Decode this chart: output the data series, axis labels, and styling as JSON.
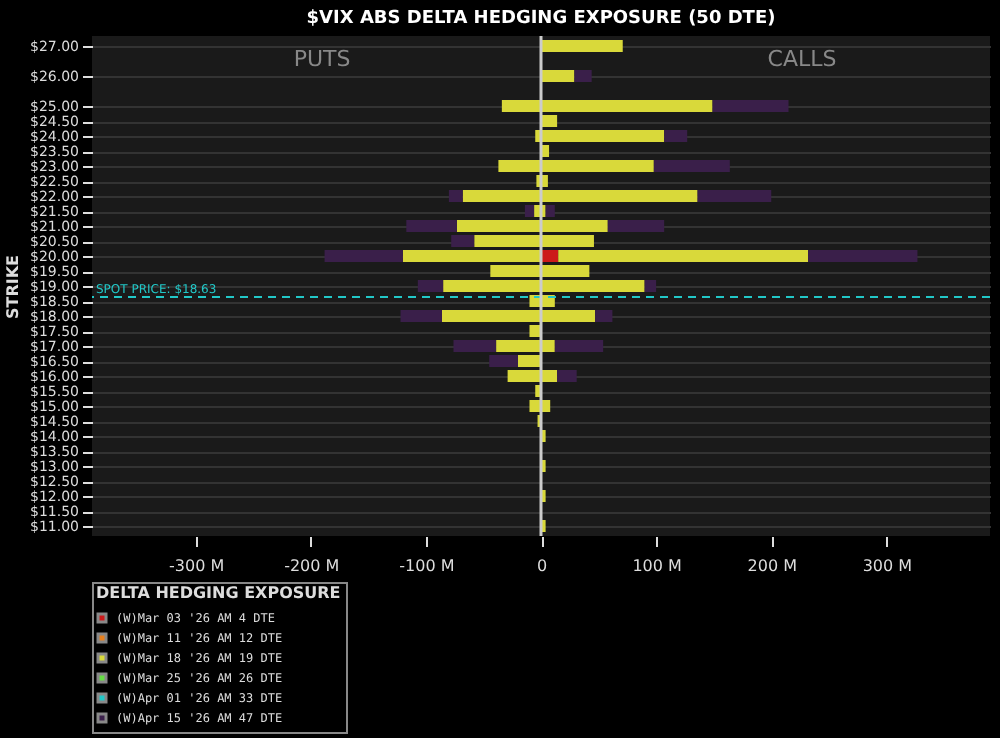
{
  "chart_data": {
    "type": "bar",
    "orientation": "horizontal",
    "stacked": true,
    "title": "$VIX ABS DELTA HEDGING EXPOSURE (50 DTE)",
    "ylabel": "STRIKE",
    "legend_title": "DELTA HEDGING EXPOSURE",
    "legend": "bottom",
    "grid": "y",
    "annotations": [
      "PUTS",
      "CALLS"
    ],
    "x": [
      27,
      26.5,
      26,
      25.5,
      25,
      24.5,
      24,
      23.5,
      23,
      22.5,
      22,
      21.5,
      21,
      20.5,
      20,
      19.5,
      19,
      18.5,
      18,
      17.5,
      17,
      16.5,
      16,
      15.5,
      15,
      14.5,
      14,
      13.5,
      13,
      12.5,
      12,
      11.5,
      11
    ],
    "series": [
      {
        "name": "(W)Mar 03 '26 AM 4 DTE",
        "color": "#cc1a1a",
        "values": [
          null,
          null,
          null,
          null,
          null,
          null,
          null,
          null,
          null,
          null,
          null,
          null,
          null,
          null,
          15,
          null,
          null,
          null,
          null,
          null,
          null,
          null,
          null,
          null,
          null,
          null,
          null,
          null,
          null,
          null,
          null,
          null,
          null
        ]
      },
      {
        "name": "(W)Mar 11 '26 AM 12 DTE",
        "color": "#e8801e",
        "values": [
          null,
          null,
          null,
          null,
          null,
          null,
          null,
          null,
          null,
          null,
          null,
          null,
          null,
          null,
          null,
          null,
          null,
          null,
          null,
          null,
          null,
          null,
          null,
          null,
          null,
          null,
          null,
          null,
          null,
          null,
          null,
          null,
          null
        ]
      },
      {
        "name": "(W)Mar 18 '26 AM 19 DTE",
        "color": "#d9d93a",
        "values": [
          71,
          null,
          29,
          null,
          149,
          14,
          107,
          7,
          98,
          6,
          136,
          4,
          58,
          46,
          217,
          42,
          90,
          12,
          47,
          null,
          12,
          null,
          14,
          null,
          8,
          null,
          4,
          null,
          4,
          null,
          4,
          null,
          4
        ]
      },
      {
        "name": "(W)Mar 25 '26 AM 26 DTE",
        "color": "#66dd44",
        "values": [
          null,
          null,
          null,
          null,
          null,
          null,
          null,
          null,
          null,
          null,
          null,
          null,
          null,
          null,
          null,
          null,
          null,
          null,
          null,
          null,
          null,
          null,
          null,
          null,
          null,
          null,
          null,
          null,
          null,
          null,
          null,
          null,
          null
        ]
      },
      {
        "name": "(W)Apr 01 '26 AM 33 DTE",
        "color": "#22c8c8",
        "values": [
          null,
          null,
          null,
          null,
          null,
          null,
          null,
          null,
          null,
          null,
          null,
          null,
          null,
          null,
          null,
          null,
          null,
          null,
          null,
          null,
          null,
          null,
          null,
          null,
          null,
          null,
          null,
          null,
          null,
          null,
          null,
          null,
          null
        ]
      },
      {
        "name": "(W)Apr 15 '26 AM 47 DTE",
        "color": "#3a1f4a",
        "values": [
          null,
          null,
          15,
          null,
          66,
          null,
          20,
          null,
          66,
          null,
          64,
          8,
          49,
          null,
          95,
          null,
          10,
          null,
          15,
          null,
          42,
          null,
          17,
          null,
          null,
          null,
          null,
          null,
          null,
          null,
          null,
          null,
          null
        ]
      },
      {
        "color": "#d9d93a",
        "values": [
          null,
          null,
          null,
          null,
          -34,
          null,
          -5,
          null,
          -37,
          -4,
          -68,
          -6,
          -73,
          -58,
          -120,
          -44,
          -85,
          -10,
          -86,
          -10,
          -39,
          -20,
          -29,
          -5,
          -10,
          -3,
          null,
          null,
          null,
          null,
          null,
          null,
          null
        ]
      },
      {
        "color": "#3a1f4a",
        "values": [
          null,
          null,
          null,
          null,
          null,
          null,
          null,
          null,
          null,
          null,
          -12,
          -8,
          -44,
          -20,
          -68,
          null,
          -22,
          null,
          -36,
          null,
          -37,
          -25,
          null,
          null,
          null,
          null,
          null,
          null,
          null,
          null,
          null,
          null,
          null
        ]
      }
    ],
    "xlim": [
      -390,
      390
    ],
    "xticks": [
      {
        "value": -300,
        "label": "-300 M"
      },
      {
        "value": -200,
        "label": "-200 M"
      },
      {
        "value": -100,
        "label": "-100 M"
      },
      0,
      {
        "value": 100,
        "label": "100 M"
      },
      {
        "value": 200,
        "label": "200 M"
      },
      {
        "value": 300,
        "label": "300 M"
      }
    ],
    "ylim": [
      11,
      27
    ],
    "yticks": [
      {
        "value": 27,
        "label": "$27.00"
      },
      {
        "value": 26,
        "label": "$26.00"
      },
      {
        "value": 25,
        "label": "$25.00"
      },
      {
        "value": 24.5,
        "label": "$24.50"
      },
      {
        "value": 24,
        "label": "$24.00"
      },
      {
        "value": 23.5,
        "label": "$23.50"
      },
      {
        "value": 23,
        "label": "$23.00"
      },
      {
        "value": 22.5,
        "label": "$22.50"
      },
      {
        "value": 22,
        "label": "$22.00"
      },
      {
        "value": 21.5,
        "label": "$21.50"
      },
      {
        "value": 21,
        "label": "$21.00"
      },
      {
        "value": 20.5,
        "label": "$20.50"
      },
      {
        "value": 20,
        "label": "$20.00"
      },
      {
        "value": 19.5,
        "label": "$19.50"
      },
      {
        "value": 19,
        "label": "$19.00"
      },
      {
        "value": 18.5,
        "label": "$18.50"
      },
      {
        "value": 18,
        "label": "$18.00"
      },
      {
        "value": 17.5,
        "label": "$17.50"
      },
      {
        "value": 17,
        "label": "$17.00"
      },
      {
        "value": 16.5,
        "label": "$16.50"
      },
      {
        "value": 16,
        "label": "$16.00"
      },
      {
        "value": 15.5,
        "label": "$15.50"
      },
      {
        "value": 15,
        "label": "$15.00"
      },
      {
        "value": 14.5,
        "label": "$14.50"
      },
      {
        "value": 14,
        "label": "$14.00"
      },
      {
        "value": 13.5,
        "label": "$13.50"
      },
      {
        "value": 13,
        "label": "$13.00"
      },
      {
        "value": 12.5,
        "label": "$12.50"
      },
      {
        "value": 12,
        "label": "$12.00"
      },
      {
        "value": 11.5,
        "label": "$11.50"
      },
      {
        "value": 11,
        "label": "$11.00"
      }
    ],
    "ref_lines": [
      {
        "axis": "y",
        "value": 18.63,
        "label": "SPOT PRICE: $18.63",
        "color": "#22c8c8",
        "line_style": "dashed"
      },
      {
        "axis": "x",
        "value": 0,
        "color": "#cccccc",
        "line_style": "solid"
      }
    ]
  }
}
